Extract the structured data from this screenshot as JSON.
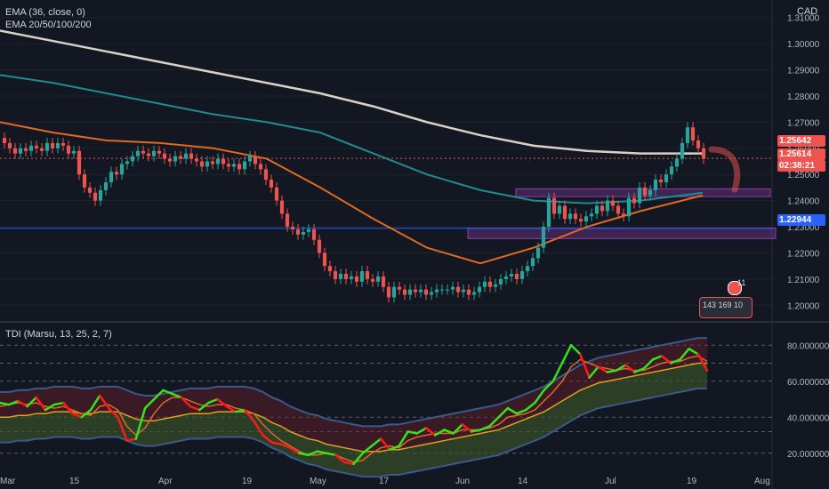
{
  "legend": {
    "ema36": "EMA (36, close, 0)",
    "ema_multi": "EMA 20/50/100/200",
    "tdi": "TDI (Marsu, 13, 25, 2, 7)"
  },
  "currency_label": "CAD",
  "price_tags": {
    "last_price": "1.25642",
    "current_price": "1.25614",
    "countdown": "02:38:21",
    "horizontal_line": "1.22944"
  },
  "colors": {
    "background": "#131722",
    "up": "#26a69a",
    "down": "#ef5350",
    "ema200": "#d8d2c8",
    "ema100": "#1e8c92",
    "ema50": "#e06a1f",
    "zone": "#8e3fa8",
    "hline": "#2962ff",
    "tdi_green": "#36e31b",
    "tdi_red": "#ff1a1a",
    "tdi_band": "#3a5a8c",
    "tdi_mid": "#e0a020"
  },
  "badge": {
    "count": "11",
    "line": "143 169 10"
  },
  "chart_data": [
    {
      "type": "candlestick",
      "title": "",
      "y_ticks": [
        "1.31000",
        "1.30000",
        "1.29000",
        "1.28000",
        "1.27000",
        "1.26000",
        "1.25000",
        "1.24000",
        "1.23000",
        "1.22000",
        "1.21000",
        "1.20000"
      ],
      "ylim": [
        1.195,
        1.315
      ],
      "x_ticks": [
        "Mar",
        "15",
        "Apr",
        "19",
        "May",
        "17",
        "Jun",
        "14",
        "Jul",
        "19",
        "Aug"
      ],
      "candles_close": [
        1.262,
        1.26,
        1.258,
        1.26,
        1.259,
        1.261,
        1.26,
        1.259,
        1.262,
        1.26,
        1.262,
        1.261,
        1.258,
        1.259,
        1.25,
        1.245,
        1.243,
        1.24,
        1.244,
        1.247,
        1.251,
        1.25,
        1.254,
        1.255,
        1.257,
        1.259,
        1.258,
        1.257,
        1.259,
        1.258,
        1.256,
        1.255,
        1.257,
        1.256,
        1.258,
        1.256,
        1.255,
        1.253,
        1.255,
        1.254,
        1.256,
        1.254,
        1.253,
        1.254,
        1.252,
        1.255,
        1.257,
        1.254,
        1.252,
        1.248,
        1.245,
        1.24,
        1.235,
        1.23,
        1.229,
        1.227,
        1.228,
        1.229,
        1.225,
        1.22,
        1.215,
        1.213,
        1.21,
        1.212,
        1.21,
        1.211,
        1.209,
        1.213,
        1.21,
        1.209,
        1.211,
        1.207,
        1.203,
        1.207,
        1.206,
        1.204,
        1.206,
        1.205,
        1.206,
        1.204,
        1.205,
        1.206,
        1.206,
        1.206,
        1.207,
        1.205,
        1.206,
        1.204,
        1.205,
        1.207,
        1.209,
        1.207,
        1.208,
        1.21,
        1.211,
        1.212,
        1.21,
        1.213,
        1.215,
        1.218,
        1.222,
        1.23,
        1.241,
        1.235,
        1.238,
        1.233,
        1.235,
        1.233,
        1.232,
        1.234,
        1.235,
        1.238,
        1.236,
        1.24,
        1.238,
        1.235,
        1.234,
        1.241,
        1.239,
        1.245,
        1.242,
        1.244,
        1.248,
        1.247,
        1.25,
        1.253,
        1.256,
        1.262,
        1.268,
        1.263,
        1.26,
        1.256
      ],
      "horizontal_line": 1.22944,
      "zones": [
        [
          1.2415,
          1.2445
        ],
        [
          1.2255,
          1.2295
        ]
      ],
      "series": [
        {
          "name": "EMA 200",
          "points": [
            [
              0,
              1.305
            ],
            [
              60,
              1.301
            ],
            [
              120,
              1.297
            ],
            [
              180,
              1.293
            ],
            [
              240,
              1.289
            ],
            [
              300,
              1.285
            ],
            [
              360,
              1.281
            ],
            [
              420,
              1.276
            ],
            [
              480,
              1.27
            ],
            [
              540,
              1.265
            ],
            [
              600,
              1.261
            ],
            [
              660,
              1.259
            ],
            [
              720,
              1.258
            ],
            [
              790,
              1.258
            ]
          ]
        },
        {
          "name": "EMA 100",
          "points": [
            [
              0,
              1.288
            ],
            [
              60,
              1.285
            ],
            [
              120,
              1.281
            ],
            [
              180,
              1.277
            ],
            [
              240,
              1.273
            ],
            [
              300,
              1.27
            ],
            [
              360,
              1.266
            ],
            [
              420,
              1.258
            ],
            [
              480,
              1.25
            ],
            [
              540,
              1.244
            ],
            [
              600,
              1.24
            ],
            [
              660,
              1.239
            ],
            [
              720,
              1.24
            ],
            [
              790,
              1.243
            ]
          ]
        },
        {
          "name": "EMA 50",
          "points": [
            [
              0,
              1.27
            ],
            [
              60,
              1.266
            ],
            [
              120,
              1.263
            ],
            [
              180,
              1.262
            ],
            [
              240,
              1.26
            ],
            [
              300,
              1.256
            ],
            [
              360,
              1.245
            ],
            [
              420,
              1.233
            ],
            [
              480,
              1.222
            ],
            [
              540,
              1.216
            ],
            [
              600,
              1.222
            ],
            [
              660,
              1.23
            ],
            [
              720,
              1.236
            ],
            [
              790,
              1.242
            ]
          ]
        }
      ]
    },
    {
      "type": "line",
      "title": "",
      "y_ticks": [
        "80.000000",
        "60.000000",
        "40.000000",
        "20.000000"
      ],
      "ylim": [
        10,
        90
      ],
      "series": [
        {
          "name": "",
          "values": [
            48,
            47,
            49,
            46,
            51,
            44,
            47,
            48,
            42,
            40,
            44,
            52,
            45,
            40,
            27,
            28,
            45,
            50,
            55,
            53,
            51,
            46,
            44,
            48,
            50,
            46,
            43,
            44,
            38,
            30,
            26,
            25,
            23,
            20,
            19,
            21,
            20,
            19,
            15,
            14,
            20,
            24,
            28,
            22,
            24,
            32,
            31,
            34,
            30,
            33,
            31,
            36,
            32,
            33,
            35,
            40,
            45,
            42,
            44,
            48,
            55,
            60,
            70,
            80,
            75,
            62,
            68,
            65,
            66,
            69,
            65,
            67,
            72,
            74,
            70,
            72,
            78,
            75,
            66
          ]
        },
        {
          "name": "",
          "values": [
            46,
            47,
            48,
            47,
            48,
            46,
            45,
            46,
            44,
            42,
            41,
            46,
            47,
            44,
            35,
            30,
            34,
            42,
            48,
            51,
            51,
            49,
            47,
            46,
            47,
            47,
            45,
            44,
            42,
            36,
            31,
            27,
            24,
            21,
            19,
            19,
            20,
            19,
            17,
            15,
            16,
            20,
            23,
            24,
            23,
            27,
            29,
            30,
            31,
            31,
            31,
            33,
            33,
            33,
            34,
            36,
            40,
            41,
            42,
            44,
            49,
            54,
            60,
            68,
            72,
            70,
            68,
            67,
            66,
            67,
            66,
            66,
            68,
            70,
            71,
            71,
            73,
            74,
            71
          ]
        },
        {
          "name": "",
          "values": [
            40,
            40,
            41,
            41,
            42,
            42,
            43,
            43,
            43,
            42,
            42,
            43,
            43,
            43,
            41,
            39,
            38,
            38,
            39,
            40,
            41,
            42,
            42,
            42,
            43,
            43,
            43,
            43,
            42,
            40,
            37,
            35,
            32,
            30,
            28,
            27,
            25,
            24,
            23,
            22,
            21,
            21,
            21,
            22,
            22,
            23,
            24,
            25,
            26,
            27,
            28,
            29,
            30,
            31,
            32,
            33,
            35,
            37,
            39,
            41,
            43,
            46,
            49,
            52,
            55,
            57,
            59,
            60,
            61,
            62,
            63,
            64,
            65,
            66,
            67,
            68,
            69,
            70,
            70
          ]
        }
      ]
    }
  ]
}
